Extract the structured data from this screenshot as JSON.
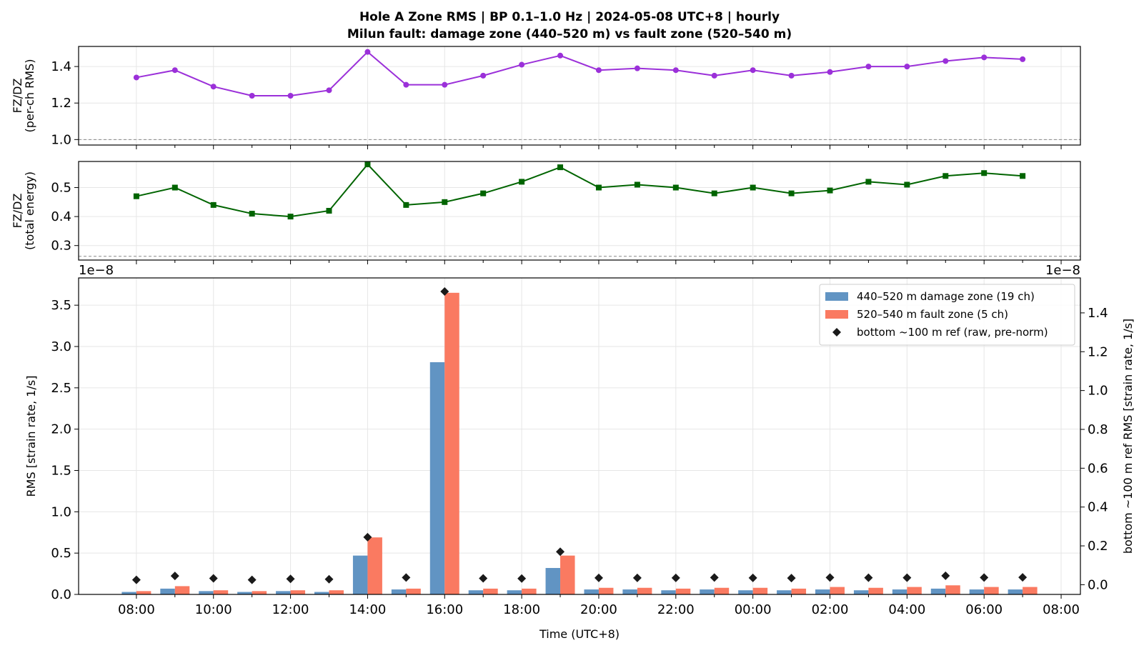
{
  "title_line1": "Hole A Zone RMS  |  BP 0.1–1.0 Hz  |  2024-05-08 UTC+8  |  hourly",
  "title_line2": "Milun fault: damage zone (440–520 m) vs fault zone (520–540 m)",
  "chart_data": [
    {
      "type": "line",
      "ylabel": [
        "FZ/DZ",
        "(per-ch RMS)"
      ],
      "ylim": [
        0.97,
        1.51
      ],
      "yticks": [
        1.0,
        1.2,
        1.4
      ],
      "reference_line": 1.0,
      "color": "#9b30d9",
      "marker": "circle",
      "x": [
        "08:00",
        "09:00",
        "10:00",
        "11:00",
        "12:00",
        "13:00",
        "14:00",
        "15:00",
        "16:00",
        "17:00",
        "18:00",
        "19:00",
        "20:00",
        "21:00",
        "22:00",
        "23:00",
        "00:00",
        "01:00",
        "02:00",
        "03:00",
        "04:00",
        "05:00",
        "06:00",
        "07:00"
      ],
      "values": [
        1.34,
        1.38,
        1.29,
        1.24,
        1.24,
        1.27,
        1.48,
        1.3,
        1.3,
        1.35,
        1.41,
        1.46,
        1.38,
        1.39,
        1.38,
        1.35,
        1.38,
        1.35,
        1.37,
        1.4,
        1.4,
        1.43,
        1.45,
        1.44
      ]
    },
    {
      "type": "line",
      "ylabel": [
        "FZ/DZ",
        "(total energy)"
      ],
      "ylim": [
        0.25,
        0.59
      ],
      "yticks": [
        0.3,
        0.4,
        0.5
      ],
      "reference_line": 0.263,
      "color": "#006400",
      "marker": "square",
      "x": [
        "08:00",
        "09:00",
        "10:00",
        "11:00",
        "12:00",
        "13:00",
        "14:00",
        "15:00",
        "16:00",
        "17:00",
        "18:00",
        "19:00",
        "20:00",
        "21:00",
        "22:00",
        "23:00",
        "00:00",
        "01:00",
        "02:00",
        "03:00",
        "04:00",
        "05:00",
        "06:00",
        "07:00"
      ],
      "values": [
        0.47,
        0.5,
        0.44,
        0.41,
        0.4,
        0.42,
        0.58,
        0.44,
        0.45,
        0.48,
        0.52,
        0.57,
        0.5,
        0.51,
        0.5,
        0.48,
        0.5,
        0.48,
        0.49,
        0.52,
        0.51,
        0.54,
        0.55,
        0.54
      ]
    },
    {
      "type": "bar",
      "xlabel": "Time (UTC+8)",
      "ylabel": "RMS  [strain rate, 1/s]",
      "ylabel_right": "bottom ~100 m ref RMS  [strain rate, 1/s]",
      "offset_text_left": "1e−8",
      "offset_text_right": "1e−8",
      "ylim": [
        0,
        3.83
      ],
      "yticks": [
        0.0,
        0.5,
        1.0,
        1.5,
        2.0,
        2.5,
        3.0,
        3.5
      ],
      "ylim_right": [
        -0.05,
        1.58
      ],
      "yticks_right": [
        0.0,
        0.2,
        0.4,
        0.6,
        0.8,
        1.0,
        1.2,
        1.4
      ],
      "xticks": [
        "08:00",
        "10:00",
        "12:00",
        "14:00",
        "16:00",
        "18:00",
        "20:00",
        "22:00",
        "00:00",
        "02:00",
        "04:00",
        "06:00",
        "08:00"
      ],
      "legend_position": "upper-right",
      "categories": [
        "08:00",
        "09:00",
        "10:00",
        "11:00",
        "12:00",
        "13:00",
        "14:00",
        "15:00",
        "16:00",
        "17:00",
        "18:00",
        "19:00",
        "20:00",
        "21:00",
        "22:00",
        "23:00",
        "00:00",
        "01:00",
        "02:00",
        "03:00",
        "04:00",
        "05:00",
        "06:00",
        "07:00"
      ],
      "series": [
        {
          "name": "440–520 m  damage zone (19 ch)",
          "color": "#6194c3",
          "axis": "left",
          "values": [
            0.03,
            0.07,
            0.04,
            0.03,
            0.04,
            0.03,
            0.47,
            0.06,
            2.81,
            0.05,
            0.05,
            0.32,
            0.06,
            0.06,
            0.05,
            0.06,
            0.05,
            0.05,
            0.06,
            0.05,
            0.06,
            0.07,
            0.06,
            0.06
          ]
        },
        {
          "name": "520–540 m  fault zone (5 ch)",
          "color": "#fa7a61",
          "axis": "left",
          "values": [
            0.04,
            0.1,
            0.05,
            0.04,
            0.05,
            0.05,
            0.69,
            0.07,
            3.65,
            0.07,
            0.07,
            0.47,
            0.08,
            0.08,
            0.07,
            0.08,
            0.08,
            0.07,
            0.09,
            0.08,
            0.09,
            0.11,
            0.09,
            0.09
          ]
        },
        {
          "name": "bottom ~100 m ref (raw, pre-norm)",
          "color": "#1a1a1a",
          "axis": "right",
          "marker": "diamond",
          "values": [
            0.025,
            0.045,
            0.033,
            0.025,
            0.03,
            0.028,
            0.245,
            0.037,
            1.51,
            0.033,
            0.032,
            0.17,
            0.035,
            0.035,
            0.035,
            0.037,
            0.035,
            0.034,
            0.037,
            0.036,
            0.036,
            0.046,
            0.037,
            0.038
          ]
        }
      ]
    }
  ]
}
